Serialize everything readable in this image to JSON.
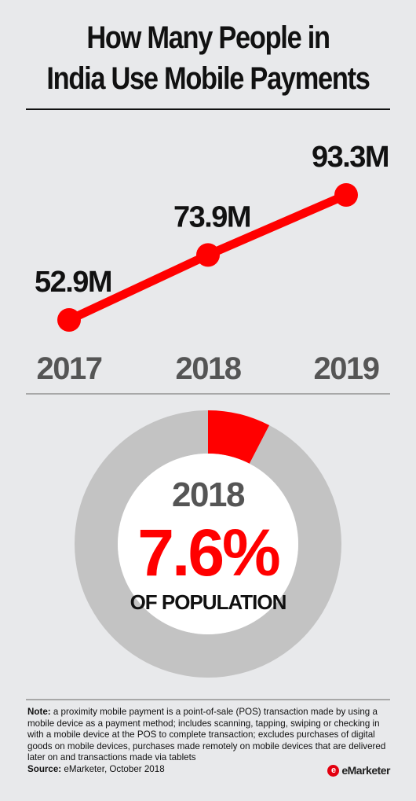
{
  "title": {
    "line1": "How Many People in",
    "line2": "India Use Mobile Payments"
  },
  "chart_data": [
    {
      "type": "line",
      "x": [
        "2017",
        "2018",
        "2019"
      ],
      "series": [
        {
          "values": [
            52.9,
            73.9,
            93.3
          ],
          "labels": [
            "52.9M",
            "73.9M",
            "93.3M"
          ]
        }
      ],
      "ylim": [
        0,
        100
      ],
      "grid": false,
      "legend": "none",
      "color": "#ff0000"
    },
    {
      "type": "pie",
      "style": "donut",
      "center_year": "2018",
      "center_value_label": "7.6%",
      "center_caption": "OF POPULATION",
      "slices": [
        {
          "value": 7.6,
          "color": "#ff0000"
        },
        {
          "value": 92.4,
          "color": "#c3c3c3"
        }
      ]
    }
  ],
  "note": {
    "label": "Note:",
    "text": " a proximity mobile payment is a point-of-sale (POS) transaction made by using a mobile device as a payment method; includes scanning, tapping, swiping or checking in with a mobile device at the POS to complete transaction; excludes purchases of digital goods on mobile devices, purchases made remotely on mobile devices that are delivered later on and transactions made via tablets",
    "source_label": "Source:",
    "source_text": " eMarketer, October 2018"
  },
  "logo": {
    "mark": "e",
    "text": "eMarketer"
  },
  "colors": {
    "accent": "#ff0000",
    "ring": "#c3c3c3",
    "background": "#e8e9eb"
  }
}
